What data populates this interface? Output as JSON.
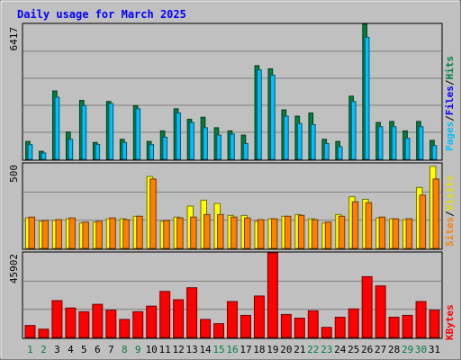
{
  "chart_data": [
    {
      "type": "bar",
      "title": "Daily usage for March 2025",
      "categories": [
        "1",
        "2",
        "3",
        "4",
        "5",
        "6",
        "7",
        "8",
        "9",
        "10",
        "11",
        "12",
        "13",
        "14",
        "15",
        "16",
        "17",
        "18",
        "19",
        "20",
        "21",
        "22",
        "23",
        "24",
        "25",
        "26",
        "27",
        "28",
        "29",
        "30",
        "31"
      ],
      "weekend_days": [
        "1",
        "2",
        "8",
        "9",
        "15",
        "16",
        "22",
        "23",
        "29",
        "30"
      ],
      "ymax": 6417,
      "ymax_label": "6417",
      "legend": [
        "Pages",
        "Files",
        "Hits"
      ],
      "series": [
        {
          "name": "Hits",
          "color": "#008040",
          "values": [
            850,
            380,
            3250,
            1300,
            2800,
            800,
            2750,
            950,
            2550,
            850,
            1350,
            2400,
            1900,
            2000,
            1500,
            1350,
            1150,
            4450,
            4300,
            2350,
            2050,
            2200,
            950,
            850,
            3000,
            6417,
            1750,
            1800,
            1350,
            1800,
            900
          ]
        },
        {
          "name": "Files",
          "color": "#00c0ff",
          "values": [
            700,
            300,
            2950,
            950,
            2550,
            700,
            2650,
            800,
            2400,
            700,
            1050,
            2200,
            1750,
            1500,
            1150,
            1200,
            750,
            4250,
            4000,
            2050,
            1700,
            1650,
            750,
            600,
            2750,
            5800,
            1550,
            1550,
            1000,
            1550,
            650
          ]
        },
        {
          "name": "Pages",
          "color": "#0000ff",
          "values": [
            0,
            0,
            0,
            0,
            0,
            0,
            0,
            0,
            0,
            0,
            0,
            0,
            0,
            0,
            0,
            0,
            0,
            0,
            0,
            0,
            0,
            0,
            0,
            0,
            0,
            0,
            0,
            0,
            0,
            0,
            0
          ]
        }
      ]
    },
    {
      "type": "bar",
      "ymax": 500,
      "ymax_label": "500",
      "legend": [
        "Sites",
        "Visits"
      ],
      "series": [
        {
          "name": "Visits",
          "color": "#ffff00",
          "values": [
            180,
            160,
            165,
            175,
            150,
            155,
            175,
            175,
            190,
            425,
            160,
            185,
            250,
            285,
            265,
            195,
            195,
            160,
            175,
            190,
            200,
            175,
            150,
            200,
            305,
            290,
            180,
            175,
            170,
            360,
            485
          ]
        },
        {
          "name": "Sites",
          "color": "#ff8000",
          "values": [
            185,
            165,
            170,
            180,
            155,
            160,
            180,
            170,
            190,
            410,
            165,
            180,
            185,
            200,
            200,
            185,
            180,
            170,
            175,
            190,
            195,
            170,
            155,
            190,
            275,
            270,
            185,
            175,
            175,
            315,
            410
          ]
        }
      ]
    },
    {
      "type": "bar",
      "ymax": 45902,
      "ymax_label": "45902",
      "legend": [
        "KBytes"
      ],
      "series": [
        {
          "name": "KBytes",
          "color": "#ff0000",
          "values": [
            6500,
            4500,
            20000,
            16000,
            14000,
            18000,
            14800,
            9800,
            14000,
            17000,
            25000,
            20500,
            27000,
            9800,
            7500,
            19500,
            12000,
            22500,
            45902,
            12500,
            10500,
            14500,
            5500,
            11000,
            15500,
            33000,
            28000,
            11000,
            12000,
            19500,
            14800
          ]
        }
      ]
    }
  ]
}
